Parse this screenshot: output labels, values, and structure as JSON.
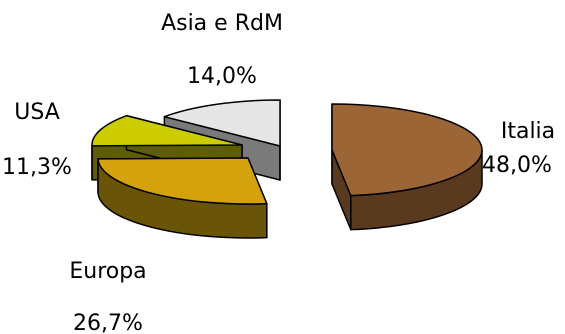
{
  "chart_data": {
    "type": "pie",
    "title": "",
    "style": "3d-exploded",
    "slices": [
      {
        "label": "Italia",
        "value": 48.0,
        "value_label": "48,0%",
        "color": "#9c6535",
        "side_color": "#5a3a1f"
      },
      {
        "label": "Europa",
        "value": 26.7,
        "value_label": "26,7%",
        "color": "#d4a20c",
        "side_color": "#6a5408"
      },
      {
        "label": "USA",
        "value": 11.3,
        "value_label": "11,3%",
        "color": "#cccc00",
        "side_color": "#5e5e00"
      },
      {
        "label": "Asia e RdM",
        "value": 14.0,
        "value_label": "14,0%",
        "color": "#e6e6e6",
        "side_color": "#7a7a7a"
      }
    ],
    "legend": "none"
  }
}
